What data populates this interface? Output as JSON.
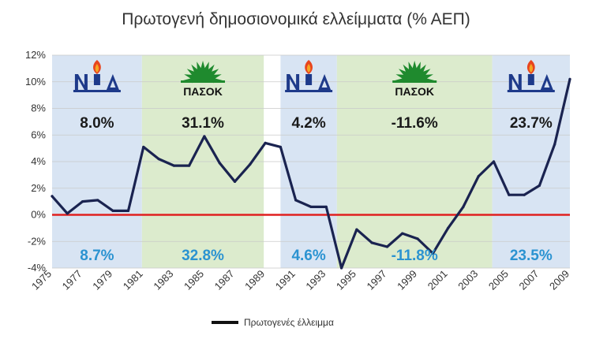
{
  "chart_data": {
    "type": "line",
    "title": "Πρωτογενή δημοσιονομικά ελλείμματα (% ΑΕΠ)",
    "xlabel": "",
    "ylabel": "",
    "xlim": [
      1975,
      2009
    ],
    "ylim": [
      -4,
      12
    ],
    "y_ticks": [
      "12%",
      "10%",
      "8%",
      "6%",
      "4%",
      "2%",
      "0%",
      "-2%",
      "-4%"
    ],
    "x_ticks": [
      "1975",
      "1977",
      "1979",
      "1981",
      "1983",
      "1985",
      "1987",
      "1989",
      "1991",
      "1993",
      "1995",
      "1997",
      "1999",
      "2001",
      "2003",
      "2005",
      "2007",
      "2009"
    ],
    "grid": true,
    "legend_position": "bottom",
    "reference_line": {
      "y": 0,
      "color": "#e02020"
    },
    "series": [
      {
        "name": "Πρωτογενές έλλειμμα",
        "color": "#1a2350",
        "x": [
          1975,
          1976,
          1977,
          1978,
          1979,
          1980,
          1981,
          1982,
          1983,
          1984,
          1985,
          1986,
          1987,
          1988,
          1989,
          1990,
          1991,
          1992,
          1993,
          1994,
          1995,
          1996,
          1997,
          1998,
          1999,
          2000,
          2001,
          2002,
          2003,
          2004,
          2005,
          2006,
          2007,
          2008,
          2009
        ],
        "y": [
          1.4,
          0.1,
          1.0,
          1.1,
          0.3,
          0.3,
          5.1,
          4.2,
          3.7,
          3.7,
          5.9,
          3.9,
          2.5,
          3.8,
          5.4,
          5.1,
          1.1,
          0.6,
          0.6,
          -4.0,
          -1.1,
          -2.1,
          -2.4,
          -1.4,
          -1.8,
          -2.9,
          -1.0,
          0.6,
          2.9,
          4.0,
          1.5,
          1.5,
          2.2,
          5.3,
          10.2
        ]
      }
    ],
    "periods": [
      {
        "party": "ΝΔ",
        "logo": "nd-logo-icon",
        "start": 1974.6,
        "end": 1980.9,
        "color": "#d8e4f3",
        "top_value": "8.0%",
        "bottom_value": "8.7%"
      },
      {
        "party": "ΠΑΣΟΚ",
        "logo": "pasok-logo-icon",
        "start": 1980.9,
        "end": 1988.9,
        "color": "#dcebcd",
        "top_value": "31.1%",
        "bottom_value": "32.8%"
      },
      {
        "party": "ΝΔ",
        "logo": "nd-logo-icon",
        "start": 1990.0,
        "end": 1993.7,
        "color": "#d8e4f3",
        "top_value": "4.2%",
        "bottom_value": "4.6%"
      },
      {
        "party": "ΠΑΣΟΚ",
        "logo": "pasok-logo-icon",
        "start": 1993.7,
        "end": 2003.9,
        "color": "#dcebcd",
        "top_value": "-11.6%",
        "bottom_value": "-11.8%"
      },
      {
        "party": "ΝΔ",
        "logo": "nd-logo-icon",
        "start": 2003.9,
        "end": 2009.5,
        "color": "#d8e4f3",
        "top_value": "23.7%",
        "bottom_value": "23.5%"
      }
    ]
  }
}
